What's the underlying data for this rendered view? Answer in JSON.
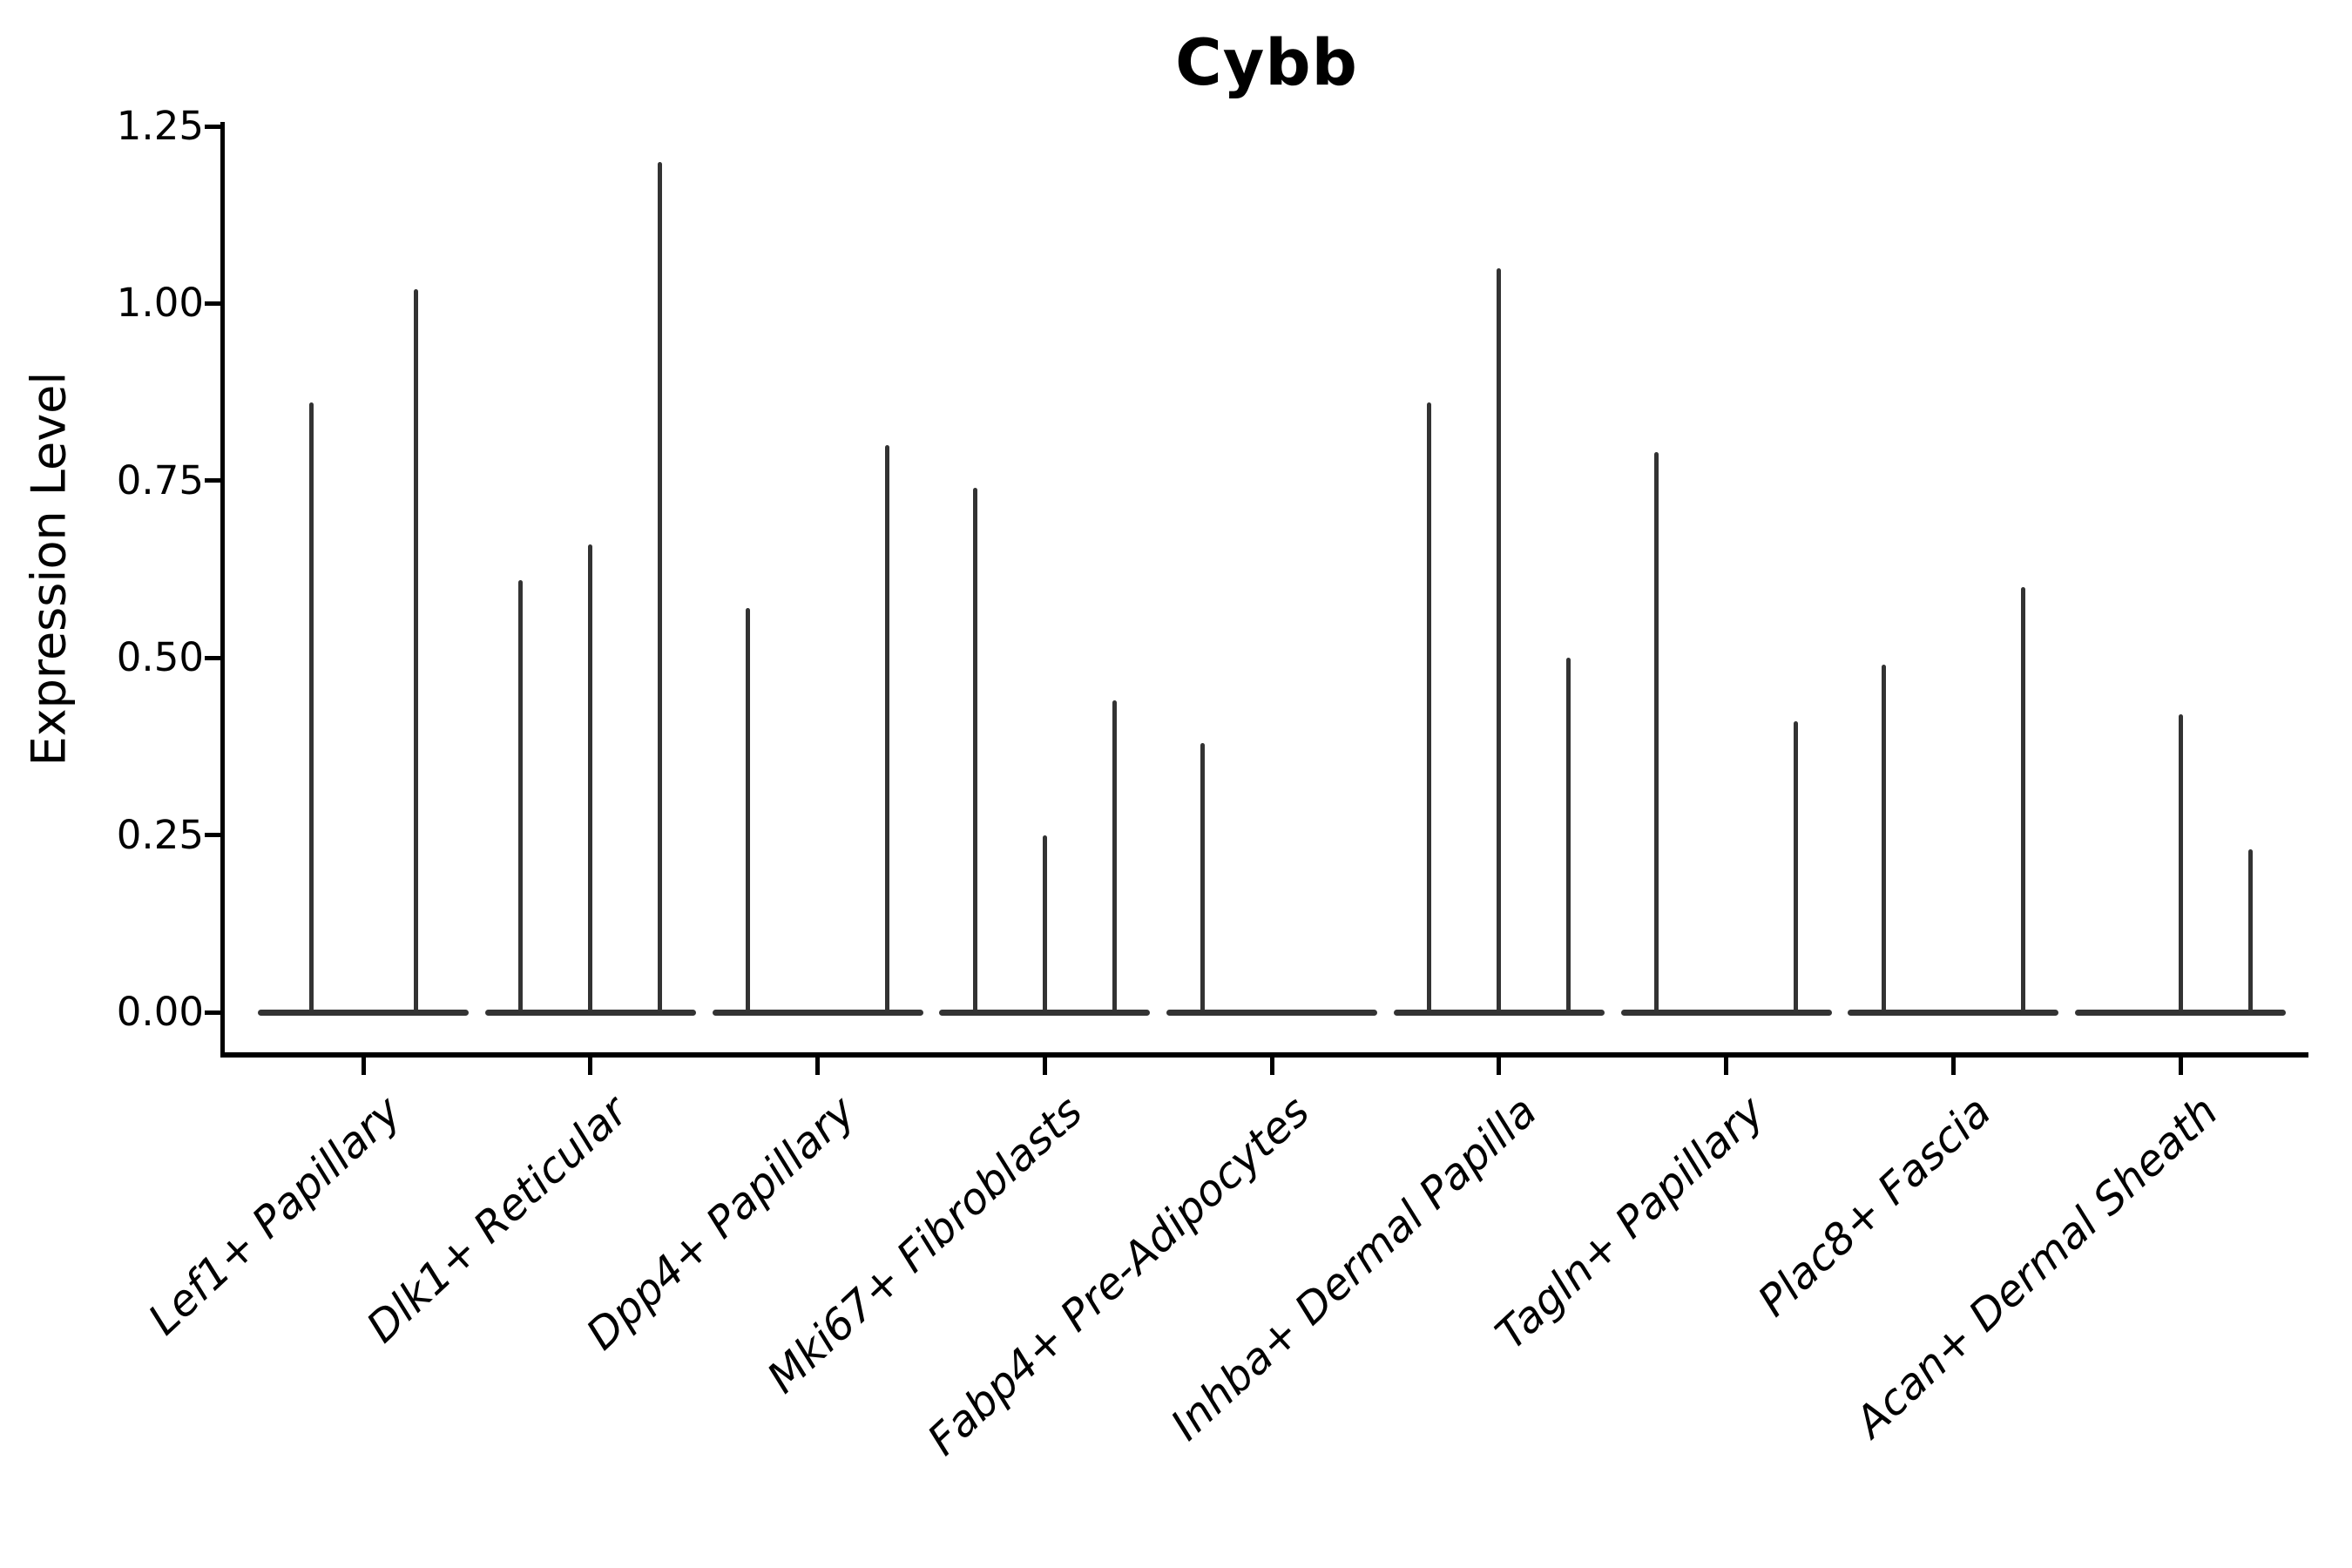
{
  "figure": {
    "title": "Cybb",
    "ylabel": "Expression Level"
  },
  "chart_data": {
    "type": "violin",
    "title": "Cybb",
    "xlabel": "",
    "ylabel": "Expression Level",
    "ylim": [
      -0.06,
      1.255
    ],
    "yticks": [
      0.0,
      0.25,
      0.5,
      0.75,
      1.0,
      1.25
    ],
    "ytick_labels": [
      "0.00",
      "0.25",
      "0.50",
      "0.75",
      "1.00",
      "1.25"
    ],
    "grid": false,
    "legend_position": "none",
    "violin_color": "#333333",
    "axis_color": "#000000",
    "background_color": "#ffffff",
    "categories": [
      "Lef1+ Papillary",
      "Dlk1+ Reticular",
      "Dpp4+ Papillary",
      "Mki67+ Fibroblasts",
      "Fabp4+ Pre-Adipocytes",
      "Inhba+ Dermal Papilla",
      "Tagln+ Papillary",
      "Plac8+ Fascia",
      "Acan+ Dermal Sheath"
    ],
    "groups": [
      {
        "category": "Lef1+ Papillary",
        "baseline_value": 0.0,
        "spikes": [
          {
            "offset": -60,
            "value": 0.86
          },
          {
            "offset": 60,
            "value": 1.02
          }
        ]
      },
      {
        "category": "Dlk1+ Reticular",
        "baseline_value": 0.0,
        "spikes": [
          {
            "offset": -80,
            "value": 0.61
          },
          {
            "offset": 0,
            "value": 0.66
          },
          {
            "offset": 80,
            "value": 1.2
          }
        ]
      },
      {
        "category": "Dpp4+ Papillary",
        "baseline_value": 0.0,
        "spikes": [
          {
            "offset": -80,
            "value": 0.57
          },
          {
            "offset": 80,
            "value": 0.8
          }
        ]
      },
      {
        "category": "Mki67+ Fibroblasts",
        "baseline_value": 0.0,
        "spikes": [
          {
            "offset": -80,
            "value": 0.74
          },
          {
            "offset": 0,
            "value": 0.25
          },
          {
            "offset": 80,
            "value": 0.44
          }
        ]
      },
      {
        "category": "Fabp4+ Pre-Adipocytes",
        "baseline_value": 0.0,
        "spikes": [
          {
            "offset": -80,
            "value": 0.38
          }
        ]
      },
      {
        "category": "Inhba+ Dermal Papilla",
        "baseline_value": 0.0,
        "spikes": [
          {
            "offset": -80,
            "value": 0.86
          },
          {
            "offset": 0,
            "value": 1.05
          },
          {
            "offset": 80,
            "value": 0.5
          }
        ]
      },
      {
        "category": "Tagln+ Papillary",
        "baseline_value": 0.0,
        "spikes": [
          {
            "offset": -80,
            "value": 0.79
          },
          {
            "offset": 80,
            "value": 0.41
          }
        ]
      },
      {
        "category": "Plac8+ Fascia",
        "baseline_value": 0.0,
        "spikes": [
          {
            "offset": -80,
            "value": 0.49
          },
          {
            "offset": 80,
            "value": 0.6
          }
        ]
      },
      {
        "category": "Acan+ Dermal Sheath",
        "baseline_value": 0.0,
        "spikes": [
          {
            "offset": 0,
            "value": 0.42
          },
          {
            "offset": 80,
            "value": 0.23
          }
        ]
      }
    ]
  }
}
